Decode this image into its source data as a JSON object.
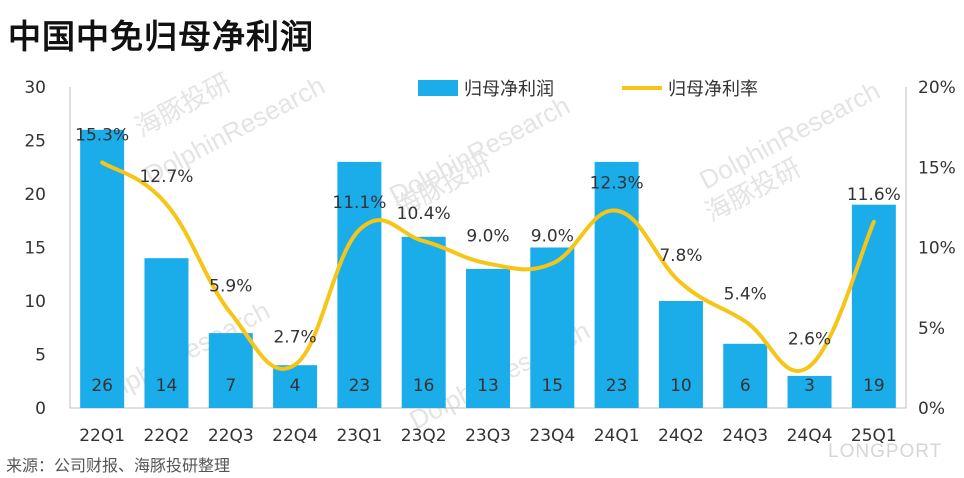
{
  "title": "中国中免归母净利润",
  "source": "来源：公司财报、海豚投研整理",
  "watermarks": {
    "cn": "海豚投研",
    "en": "DolphinResearch",
    "logo": "LONGPORT"
  },
  "colors": {
    "bar": "#1AADEA",
    "line": "#F5C518",
    "text": "#333333",
    "axis": "#bfbfbf"
  },
  "chart_data": {
    "type": "bar",
    "categories": [
      "22Q1",
      "22Q2",
      "22Q3",
      "22Q4",
      "23Q1",
      "23Q2",
      "23Q3",
      "23Q4",
      "24Q1",
      "24Q2",
      "24Q3",
      "24Q4",
      "25Q1"
    ],
    "series": [
      {
        "name": "归母净利润",
        "type": "bar",
        "axis": "left",
        "values": [
          26,
          14,
          7,
          4,
          23,
          16,
          13,
          15,
          23,
          10,
          6,
          3,
          19
        ],
        "labels": [
          "26",
          "14",
          "7",
          "4",
          "23",
          "16",
          "13",
          "15",
          "23",
          "10",
          "6",
          "3",
          "19"
        ]
      },
      {
        "name": "归母净利率",
        "type": "line",
        "axis": "right",
        "values": [
          15.3,
          12.7,
          5.9,
          2.7,
          11.1,
          10.4,
          9.0,
          9.0,
          12.3,
          7.8,
          5.4,
          2.6,
          11.6
        ],
        "labels": [
          "15.3%",
          "12.7%",
          "5.9%",
          "2.7%",
          "11.1%",
          "10.4%",
          "9.0%",
          "9.0%",
          "12.3%",
          "7.8%",
          "5.4%",
          "2.6%",
          "11.6%"
        ]
      }
    ],
    "left_axis": {
      "min": 0,
      "max": 30,
      "ticks": [
        "0",
        "5",
        "10",
        "15",
        "20",
        "25",
        "30"
      ]
    },
    "right_axis": {
      "min": 0,
      "max": 20,
      "ticks": [
        "0%",
        "5%",
        "10%",
        "15%",
        "20%"
      ]
    },
    "legend_position": "top-center",
    "grid": false
  }
}
